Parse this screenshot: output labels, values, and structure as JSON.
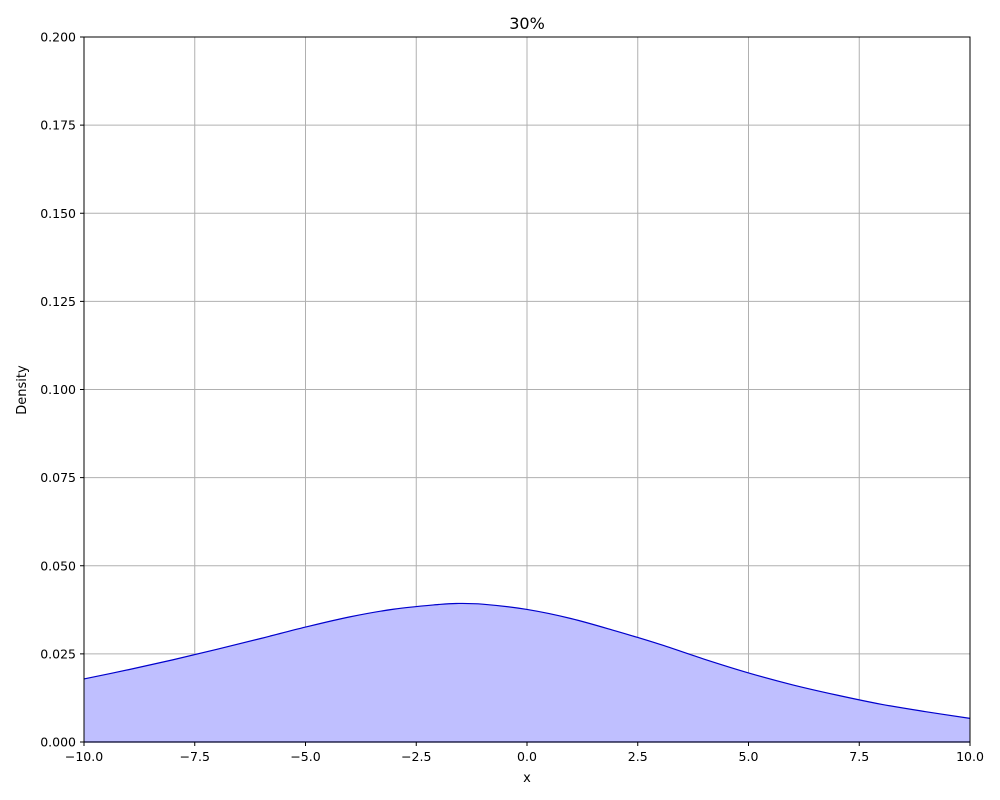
{
  "chart_data": {
    "type": "area",
    "title": "30%",
    "xlabel": "x",
    "ylabel": "Density",
    "xlim": [
      -10,
      10
    ],
    "ylim": [
      0,
      0.2
    ],
    "x_ticks": [
      -10.0,
      -7.5,
      -5.0,
      -2.5,
      0.0,
      2.5,
      5.0,
      7.5,
      10.0
    ],
    "x_tick_labels": [
      "−10.0",
      "−7.5",
      "−5.0",
      "−2.5",
      "0.0",
      "2.5",
      "5.0",
      "7.5",
      "10.0"
    ],
    "y_ticks": [
      0.0,
      0.025,
      0.05,
      0.075,
      0.1,
      0.125,
      0.15,
      0.175,
      0.2
    ],
    "y_tick_labels": [
      "0.000",
      "0.025",
      "0.050",
      "0.075",
      "0.100",
      "0.125",
      "0.150",
      "0.175",
      "0.200"
    ],
    "grid": true,
    "series": [
      {
        "color": "#0000cc",
        "fill": "#bfbfff",
        "x": [
          -10,
          -9,
          -8,
          -7,
          -6,
          -5,
          -4,
          -3,
          -2,
          -1.6,
          -1,
          0,
          1,
          2,
          3,
          4,
          5,
          6,
          7,
          8,
          9,
          10
        ],
        "y": [
          0.0179,
          0.0205,
          0.0233,
          0.0263,
          0.0294,
          0.0326,
          0.0355,
          0.0377,
          0.039,
          0.0393,
          0.0391,
          0.0376,
          0.035,
          0.0315,
          0.0277,
          0.0235,
          0.0196,
          0.0162,
          0.0133,
          0.0107,
          0.0086,
          0.0067
        ]
      }
    ]
  }
}
